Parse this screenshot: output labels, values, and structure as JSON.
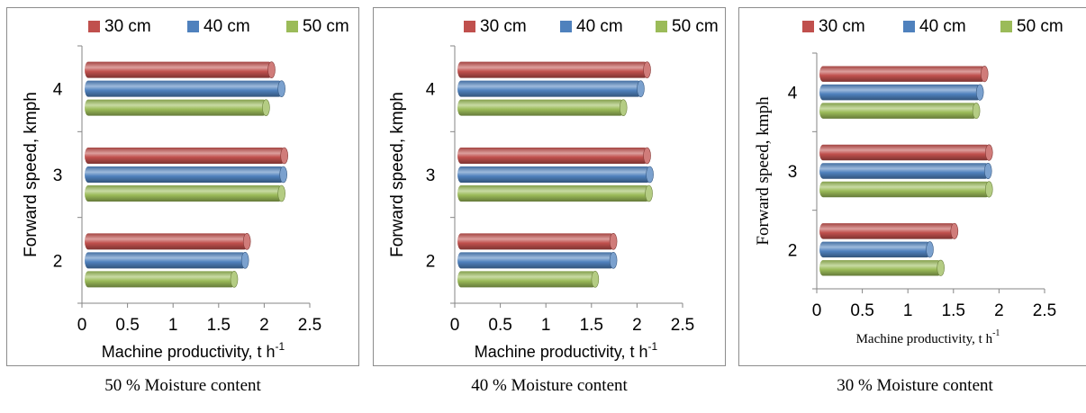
{
  "colors": {
    "30 cm": "#c0504d",
    "40 cm": "#4f81bd",
    "50 cm": "#9bbb59"
  },
  "chart_data": [
    {
      "type": "bar",
      "orientation": "horizontal",
      "caption": "50 % Moisture content",
      "xlabel": "Machine productivity, t h",
      "xlabel_sup": "-1",
      "ylabel": "Forward speed, kmph",
      "categories": [
        "2",
        "3",
        "4"
      ],
      "xticks": [
        "0",
        "0.5",
        "1",
        "1.5",
        "2",
        "2.5"
      ],
      "xlim": [
        0,
        2.5
      ],
      "grid": false,
      "legend_position": "top",
      "series": [
        {
          "name": "30 cm",
          "values": [
            1.82,
            2.23,
            2.09
          ]
        },
        {
          "name": "40 cm",
          "values": [
            1.8,
            2.22,
            2.2
          ]
        },
        {
          "name": "50 cm",
          "values": [
            1.68,
            2.2,
            2.03
          ]
        }
      ]
    },
    {
      "type": "bar",
      "orientation": "horizontal",
      "caption": "40 % Moisture content",
      "xlabel": "Machine productivity, t h",
      "xlabel_sup": "-1",
      "ylabel": "Forward speed, kmph",
      "categories": [
        "2",
        "3",
        "4"
      ],
      "xticks": [
        "0",
        "0.5",
        "1",
        "1.5",
        "2",
        "2.5"
      ],
      "xlim": [
        0,
        2.5
      ],
      "grid": false,
      "legend_position": "top",
      "series": [
        {
          "name": "30 cm",
          "values": [
            1.75,
            2.12,
            2.12
          ]
        },
        {
          "name": "40 cm",
          "values": [
            1.75,
            2.15,
            2.05
          ]
        },
        {
          "name": "50 cm",
          "values": [
            1.55,
            2.14,
            1.86
          ]
        }
      ]
    },
    {
      "type": "bar",
      "orientation": "horizontal",
      "caption": "30 % Moisture content",
      "xlabel": "Machine productivity, t h",
      "xlabel_sup": "-1",
      "ylabel": "Forward speed, kmph",
      "categories": [
        "2",
        "3",
        "4"
      ],
      "xticks": [
        "0",
        "0.5",
        "1",
        "1.5",
        "2",
        "2.5"
      ],
      "xlim": [
        0,
        2.5
      ],
      "grid": false,
      "legend_position": "top",
      "series": [
        {
          "name": "30 cm",
          "values": [
            1.52,
            1.9,
            1.85
          ]
        },
        {
          "name": "40 cm",
          "values": [
            1.25,
            1.89,
            1.8
          ]
        },
        {
          "name": "50 cm",
          "values": [
            1.37,
            1.9,
            1.76
          ]
        }
      ]
    }
  ]
}
